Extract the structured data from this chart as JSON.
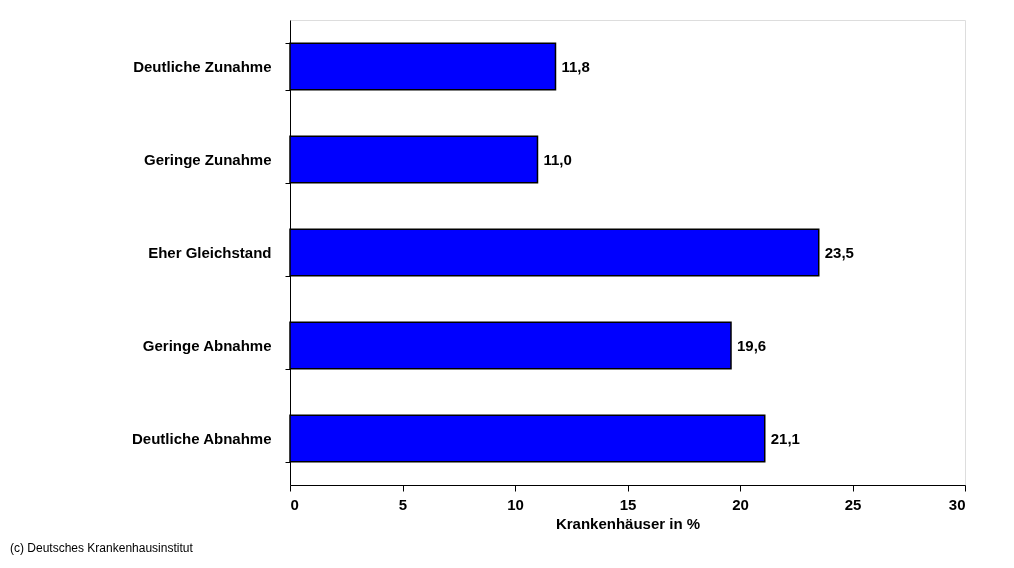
{
  "chart_data": {
    "type": "bar",
    "orientation": "horizontal",
    "xlabel": "Krankenhäuser in %",
    "categories": [
      "Deutliche Zunahme",
      "Geringe Zunahme",
      "Eher Gleichstand",
      "Geringe Abnahme",
      "Deutliche Abnahme"
    ],
    "values": [
      11.8,
      11.0,
      23.5,
      19.6,
      21.1
    ],
    "value_labels": [
      "11,8",
      "11,0",
      "23,5",
      "19,6",
      "21,1"
    ],
    "color": "#0000ff",
    "xlim": [
      0,
      30
    ],
    "xticks": [
      0,
      5,
      10,
      15,
      20,
      25,
      30
    ],
    "grid": false,
    "annotations": [
      "(c) Deutsches Krankenhausinstitut"
    ]
  }
}
